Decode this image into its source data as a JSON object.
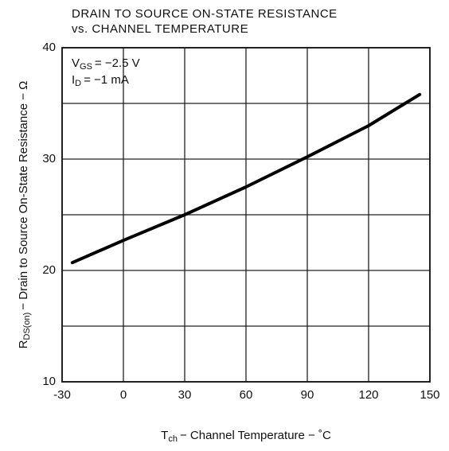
{
  "chart_data": {
    "type": "line",
    "title": [
      "DRAIN TO SOURCE ON-STATE RESISTANCE",
      "vs. CHANNEL TEMPERATURE"
    ],
    "annotations": [
      {
        "main": "V",
        "sub": "GS",
        "rest": "= −2.5 V"
      },
      {
        "main": "I",
        "sub": "D",
        "rest": "= −1 mA"
      }
    ],
    "x_label": {
      "main": "T",
      "sub": "ch",
      "rest": "− Channel Temperature − ˚C"
    },
    "y_label": {
      "main": "R",
      "sub": "DS(on)",
      "rest": "− Drain to Source On-State Resistance − Ω"
    },
    "x": [
      -25,
      0,
      30,
      60,
      90,
      120,
      145
    ],
    "series": [
      {
        "color": "#000000",
        "values": [
          20.7,
          22.7,
          25,
          27.5,
          30.2,
          33,
          35.8
        ]
      }
    ],
    "xlim": [
      -30,
      150
    ],
    "xticks": [
      -30,
      0,
      30,
      60,
      90,
      120,
      150
    ],
    "ylim": [
      10,
      40
    ],
    "yticks": [
      10,
      20,
      30,
      40
    ],
    "ygrid": [
      10,
      15,
      20,
      25,
      30,
      35,
      40
    ],
    "grid": true
  }
}
